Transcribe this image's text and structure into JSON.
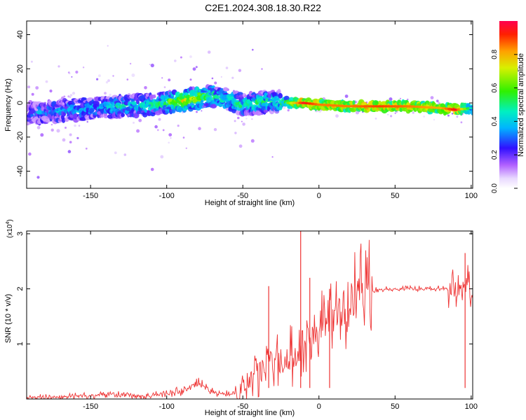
{
  "title": "C2E1.2024.308.18.30.R22",
  "chart_data": [
    {
      "type": "heatmap",
      "xlabel": "Height of straight line (km)",
      "ylabel": "Frequency (Hz)",
      "xlim": [
        -192,
        101
      ],
      "ylim": [
        -50,
        48
      ],
      "xticks": [
        -150,
        -100,
        -50,
        0,
        50,
        100
      ],
      "yticks": [
        -40,
        -20,
        0,
        20,
        40
      ],
      "colorbar": {
        "label": "Normalized spectral amplitude",
        "range": [
          0,
          1
        ],
        "ticks": [
          0.0,
          0.2,
          0.4,
          0.6,
          0.8
        ]
      },
      "ridge": {
        "x": [
          -192,
          -170,
          -150,
          -130,
          -110,
          -100,
          -90,
          -80,
          -70,
          -60,
          -50,
          -40,
          -30,
          -20,
          -10,
          0,
          20,
          40,
          60,
          80,
          90,
          100
        ],
        "freq_center": [
          -6,
          -5,
          -3,
          -2,
          -1,
          0,
          1,
          3,
          4,
          2,
          -1,
          0,
          1,
          0,
          0,
          -1,
          -2,
          -2,
          -2,
          -3,
          -4,
          -3
        ],
        "peak_amplitude": [
          0.25,
          0.35,
          0.35,
          0.4,
          0.45,
          0.55,
          0.7,
          0.7,
          0.5,
          0.45,
          0.45,
          0.5,
          0.45,
          0.55,
          0.85,
          0.75,
          0.75,
          0.8,
          0.75,
          0.7,
          0.85,
          0.35
        ]
      }
    },
    {
      "type": "line",
      "xlabel": "Height of straight line (km)",
      "ylabel": "SNR (10 * v/v)",
      "y_scale_label": "(x10",
      "y_scale_exponent": "4",
      "xlim": [
        -192,
        101
      ],
      "ylim": [
        0,
        3.05
      ],
      "xticks": [
        -150,
        -100,
        -50,
        0,
        50,
        100
      ],
      "yticks": [
        1,
        2,
        3
      ],
      "series": [
        {
          "color": "#ee3333",
          "x": [
            -192,
            -180,
            -170,
            -160,
            -150,
            -140,
            -130,
            -120,
            -110,
            -100,
            -90,
            -85,
            -80,
            -70,
            -60,
            -55,
            -50,
            -45,
            -40,
            -35,
            -30,
            -25,
            -20,
            -15,
            -10,
            -5,
            0,
            5,
            10,
            15,
            20,
            25,
            30,
            40,
            50,
            60,
            70,
            80,
            90,
            95,
            97,
            101
          ],
          "y": [
            0.02,
            0.03,
            0.04,
            0.05,
            0.06,
            0.08,
            0.07,
            0.05,
            0.06,
            0.1,
            0.14,
            0.2,
            0.28,
            0.12,
            0.08,
            0.1,
            0.18,
            0.32,
            0.45,
            0.55,
            0.6,
            0.7,
            0.75,
            0.85,
            0.95,
            1.15,
            1.35,
            1.45,
            1.55,
            1.65,
            1.75,
            1.85,
            1.95,
            1.98,
            2.0,
            2.0,
            2.0,
            2.0,
            1.98,
            1.9,
            2.1,
            1.85
          ]
        }
      ],
      "spikes": [
        {
          "x": -33,
          "y": 2.05
        },
        {
          "x": -12,
          "y": 3.05
        },
        {
          "x": -6,
          "y": 2.2
        },
        {
          "x": 7,
          "y": 2.0
        },
        {
          "x": 96,
          "y": 2.65
        }
      ]
    }
  ]
}
